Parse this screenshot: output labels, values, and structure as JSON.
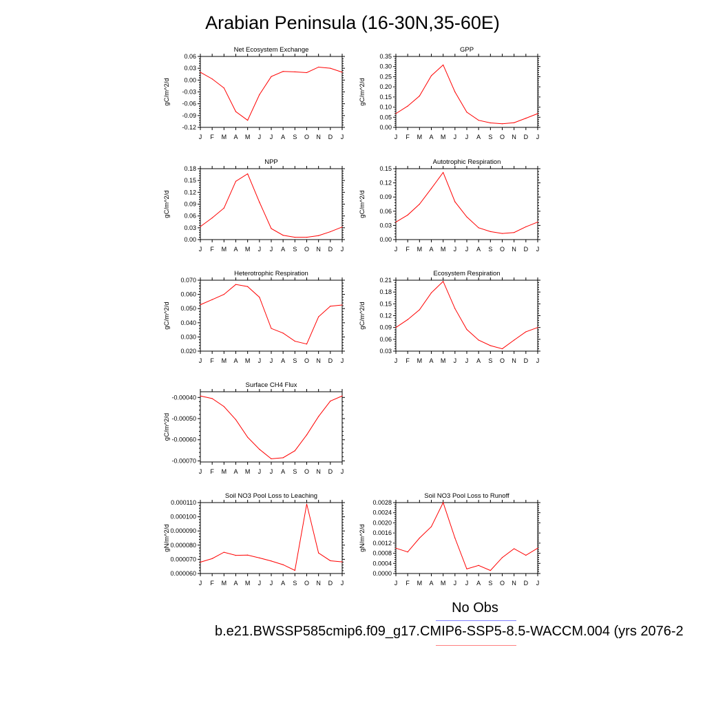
{
  "page": {
    "title": "Arabian Peninsula (16-30N,35-60E)",
    "legend_title": "No Obs",
    "case_label": "b.e21.BWSSP585cmip6.f09_g17.CMIP6-SSP5-8.5-WACCM.004 (yrs 2076-2",
    "series_color": "#ff0000",
    "legend_colors": [
      "#7f7fff",
      "#ff7f7f"
    ]
  },
  "chart_data": [
    {
      "type": "line",
      "title": "Net Ecosystem Exchange",
      "ylabel": "gC/m^2/d",
      "categories": [
        "J",
        "F",
        "M",
        "A",
        "M",
        "J",
        "J",
        "A",
        "S",
        "O",
        "N",
        "D",
        "J"
      ],
      "values": [
        0.02,
        0.003,
        -0.02,
        -0.08,
        -0.102,
        -0.037,
        0.009,
        0.022,
        0.021,
        0.019,
        0.033,
        0.03,
        0.02
      ],
      "ylim": [
        -0.12,
        0.06
      ],
      "yticks": [
        -0.12,
        -0.09,
        -0.06,
        -0.03,
        0.0,
        0.03,
        0.06
      ],
      "ytick_labels": [
        "-0.12",
        "-0.09",
        "-0.06",
        "-0.03",
        "0.00",
        "0.03",
        "0.06"
      ]
    },
    {
      "type": "line",
      "title": "GPP",
      "ylabel": "gC/m^2/d",
      "categories": [
        "J",
        "F",
        "M",
        "A",
        "M",
        "J",
        "J",
        "A",
        "S",
        "O",
        "N",
        "D",
        "J"
      ],
      "values": [
        0.068,
        0.105,
        0.155,
        0.255,
        0.308,
        0.175,
        0.075,
        0.035,
        0.022,
        0.018,
        0.023,
        0.045,
        0.068
      ],
      "ylim": [
        0.0,
        0.35
      ],
      "yticks": [
        0.0,
        0.05,
        0.1,
        0.15,
        0.2,
        0.25,
        0.3,
        0.35
      ],
      "ytick_labels": [
        "0.00",
        "0.05",
        "0.10",
        "0.15",
        "0.20",
        "0.25",
        "0.30",
        "0.35"
      ]
    },
    {
      "type": "line",
      "title": "NPP",
      "ylabel": "gC/m^2/d",
      "categories": [
        "J",
        "F",
        "M",
        "A",
        "M",
        "J",
        "J",
        "A",
        "S",
        "O",
        "N",
        "D",
        "J"
      ],
      "values": [
        0.033,
        0.055,
        0.08,
        0.148,
        0.167,
        0.095,
        0.028,
        0.011,
        0.006,
        0.006,
        0.01,
        0.02,
        0.032
      ],
      "ylim": [
        0.0,
        0.18
      ],
      "yticks": [
        0.0,
        0.03,
        0.06,
        0.09,
        0.12,
        0.15,
        0.18
      ],
      "ytick_labels": [
        "0.00",
        "0.03",
        "0.06",
        "0.09",
        "0.12",
        "0.15",
        "0.18"
      ]
    },
    {
      "type": "line",
      "title": "Autotrophic Respiration",
      "ylabel": "gC/m^2/d",
      "categories": [
        "J",
        "F",
        "M",
        "A",
        "M",
        "J",
        "J",
        "A",
        "S",
        "O",
        "N",
        "D",
        "J"
      ],
      "values": [
        0.037,
        0.052,
        0.075,
        0.108,
        0.142,
        0.08,
        0.048,
        0.025,
        0.017,
        0.013,
        0.015,
        0.027,
        0.037
      ],
      "ylim": [
        0.0,
        0.15
      ],
      "yticks": [
        0.0,
        0.03,
        0.06,
        0.09,
        0.12,
        0.15
      ],
      "ytick_labels": [
        "0.00",
        "0.03",
        "0.06",
        "0.09",
        "0.12",
        "0.15"
      ]
    },
    {
      "type": "line",
      "title": "Heterotrophic Respiration",
      "ylabel": "gC/m^2/d",
      "categories": [
        "J",
        "F",
        "M",
        "A",
        "M",
        "J",
        "J",
        "A",
        "S",
        "O",
        "N",
        "D",
        "J"
      ],
      "values": [
        0.0527,
        0.0563,
        0.06,
        0.067,
        0.0655,
        0.058,
        0.036,
        0.0327,
        0.027,
        0.025,
        0.0442,
        0.0517,
        0.0525
      ],
      "ylim": [
        0.02,
        0.07
      ],
      "yticks": [
        0.02,
        0.03,
        0.04,
        0.05,
        0.06,
        0.07
      ],
      "ytick_labels": [
        "0.020",
        "0.030",
        "0.040",
        "0.050",
        "0.060",
        "0.070"
      ]
    },
    {
      "type": "line",
      "title": "Ecosystem Respiration",
      "ylabel": "gC/m^2/d",
      "categories": [
        "J",
        "F",
        "M",
        "A",
        "M",
        "J",
        "J",
        "A",
        "S",
        "O",
        "N",
        "D",
        "J"
      ],
      "values": [
        0.09,
        0.11,
        0.135,
        0.178,
        0.207,
        0.138,
        0.085,
        0.058,
        0.044,
        0.036,
        0.058,
        0.079,
        0.09
      ],
      "ylim": [
        0.03,
        0.21
      ],
      "yticks": [
        0.03,
        0.06,
        0.09,
        0.12,
        0.15,
        0.18,
        0.21
      ],
      "ytick_labels": [
        "0.03",
        "0.06",
        "0.09",
        "0.12",
        "0.15",
        "0.18",
        "0.21"
      ]
    },
    {
      "type": "line",
      "title": "Surface CH4 Flux",
      "ylabel": "gC/m^2/d",
      "categories": [
        "J",
        "F",
        "M",
        "A",
        "M",
        "J",
        "J",
        "A",
        "S",
        "O",
        "N",
        "D",
        "J"
      ],
      "values": [
        -0.000393,
        -0.000405,
        -0.000443,
        -0.000505,
        -0.000588,
        -0.000645,
        -0.00069,
        -0.000685,
        -0.000652,
        -0.000577,
        -0.00049,
        -0.000417,
        -0.000393
      ],
      "ylim": [
        -0.000705,
        -0.000373
      ],
      "yticks": [
        -0.0007,
        -0.0006,
        -0.0005,
        -0.0004
      ],
      "ytick_labels": [
        "-0.00070",
        "-0.00060",
        "-0.00050",
        "-0.00040"
      ]
    },
    {
      "type": "line",
      "title": "Soil NO3 Pool Loss to Leaching",
      "ylabel": "gN/m^2/d",
      "categories": [
        "J",
        "F",
        "M",
        "A",
        "M",
        "J",
        "J",
        "A",
        "S",
        "O",
        "N",
        "D",
        "J"
      ],
      "values": [
        6.8e-05,
        7.05e-05,
        7.5e-05,
        7.28e-05,
        7.3e-05,
        7.1e-05,
        6.88e-05,
        6.62e-05,
        6.22e-05,
        0.000109,
        7.45e-05,
        6.9e-05,
        6.82e-05
      ],
      "ylim": [
        6e-05,
        0.00011
      ],
      "yticks": [
        6e-05,
        7e-05,
        8e-05,
        9e-05,
        0.0001,
        0.00011
      ],
      "ytick_labels": [
        "0.000060",
        "0.000070",
        "0.000080",
        "0.000090",
        "0.000100",
        "0.000110"
      ]
    },
    {
      "type": "line",
      "title": "Soil NO3 Pool Loss to Runoff",
      "ylabel": "gN/m^2/d",
      "categories": [
        "J",
        "F",
        "M",
        "A",
        "M",
        "J",
        "J",
        "A",
        "S",
        "O",
        "N",
        "D",
        "J"
      ],
      "values": [
        0.001,
        0.00085,
        0.0014,
        0.00185,
        0.0028,
        0.0014,
        0.00018,
        0.00032,
        0.00012,
        0.00063,
        0.00098,
        0.00072,
        0.001
      ],
      "ylim": [
        0.0,
        0.0028
      ],
      "yticks": [
        0.0,
        0.0004,
        0.0008,
        0.0012,
        0.0016,
        0.002,
        0.0024,
        0.0028
      ],
      "ytick_labels": [
        "0.0000",
        "0.0004",
        "0.0008",
        "0.0012",
        "0.0016",
        "0.0020",
        "0.0024",
        "0.0028"
      ]
    }
  ]
}
